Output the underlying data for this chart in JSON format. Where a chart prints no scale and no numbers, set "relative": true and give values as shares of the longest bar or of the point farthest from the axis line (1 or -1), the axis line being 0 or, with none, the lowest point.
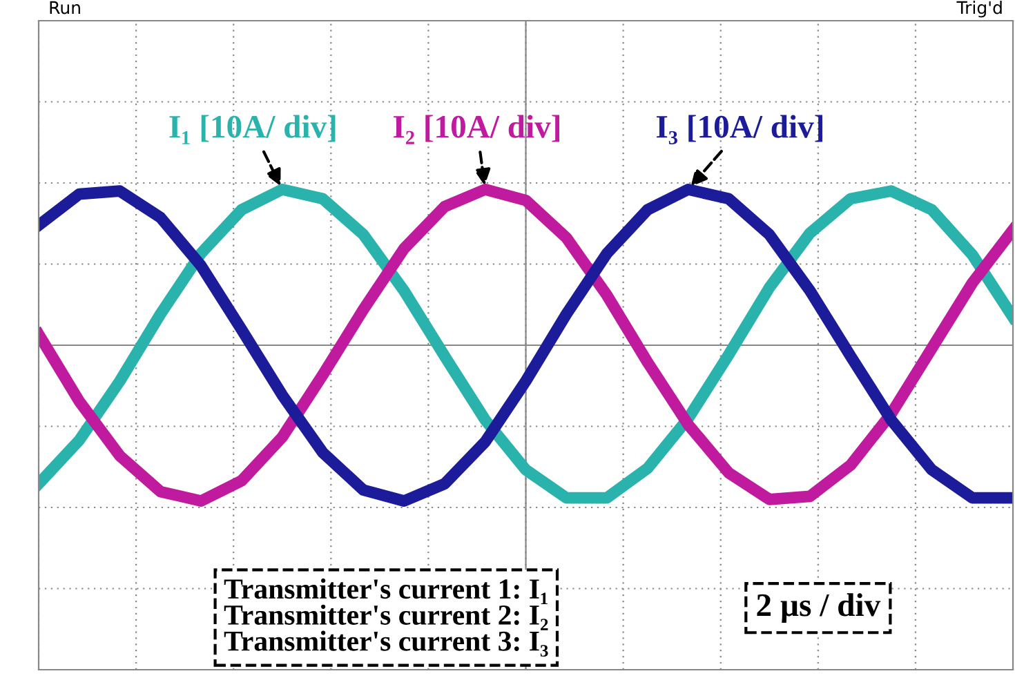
{
  "chart_data": {
    "type": "line",
    "relative": true,
    "grid": true,
    "legend": false,
    "tick_labels": false,
    "marker": "none",
    "line_style": "solid",
    "categories": [
      null,
      null,
      null,
      null,
      null,
      null,
      null,
      null,
      null,
      null,
      null,
      null,
      null,
      null,
      null,
      null,
      null,
      null,
      null,
      null,
      null,
      null,
      null,
      null,
      null
    ],
    "series": [
      {
        "name": "I₁ [10A/ div]",
        "color": "#2ab3ad",
        "values": [
          -0.89,
          -0.61,
          -0.23,
          0.2,
          0.59,
          0.87,
          1.0,
          0.94,
          0.71,
          0.35,
          -0.07,
          -0.48,
          -0.8,
          -0.98,
          -0.98,
          -0.79,
          -0.47,
          -0.06,
          0.37,
          0.72,
          0.94,
          0.99,
          0.87,
          0.58,
          0.18
        ]
      },
      {
        "name": "I₂ [10A/ div]",
        "color": "#c01a9e",
        "values": [
          0.07,
          -0.36,
          -0.71,
          -0.94,
          -1.0,
          -0.87,
          -0.59,
          -0.19,
          0.23,
          0.62,
          0.89,
          1.0,
          0.93,
          0.69,
          0.32,
          -0.11,
          -0.51,
          -0.82,
          -0.99,
          -0.97,
          -0.77,
          -0.44,
          -0.02,
          0.4,
          0.74
        ]
      },
      {
        "name": "I₃ [10A/ div]",
        "color": "#1c1c9a",
        "values": [
          0.77,
          0.97,
          0.99,
          0.82,
          0.51,
          0.1,
          -0.32,
          -0.69,
          -0.93,
          -1.0,
          -0.89,
          -0.62,
          -0.23,
          0.2,
          0.59,
          0.87,
          1.0,
          0.94,
          0.71,
          0.35,
          -0.07,
          -0.48,
          -0.8,
          -0.98,
          -0.98
        ]
      }
    ],
    "annotations": [
      "Run",
      "Trig'd",
      "Transmitter's current 1: I₁\nTransmitter's current 2: I₂\nTransmitter's current 3: I₃",
      "2 µs / div"
    ]
  }
}
